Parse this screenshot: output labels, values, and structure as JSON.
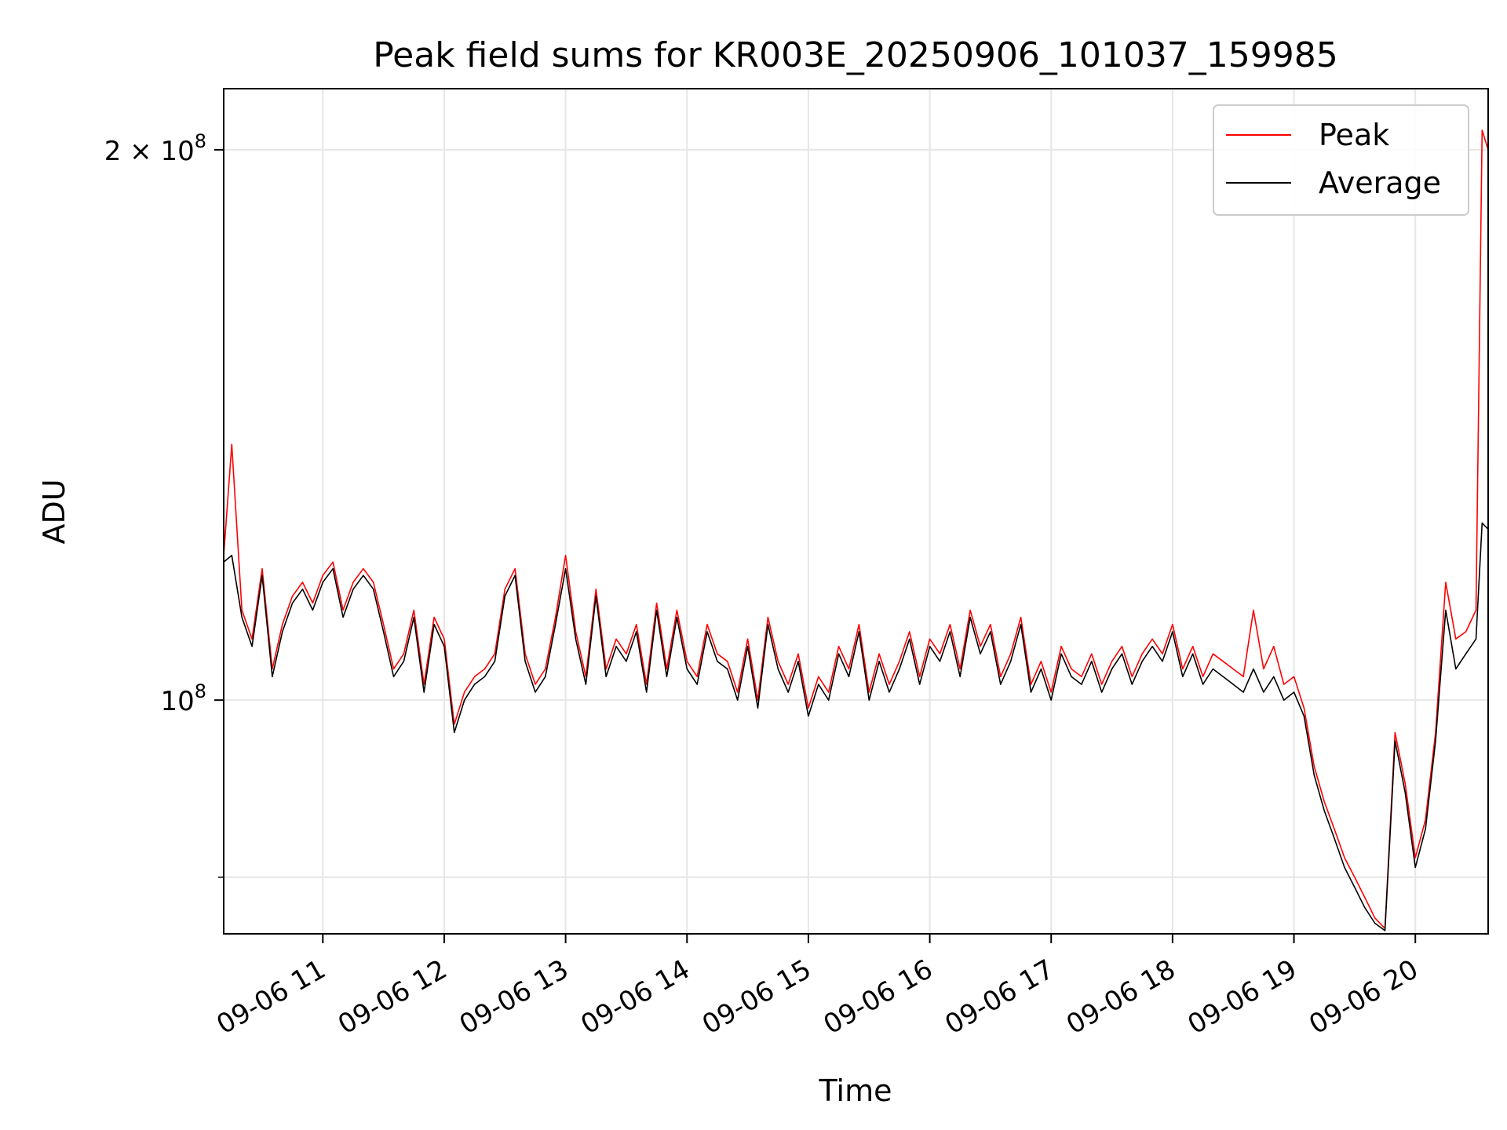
{
  "chart_data": {
    "type": "line",
    "title": "Peak field sums for KR003E_20250906_101037_159985",
    "xlabel": "Time",
    "ylabel": "ADU",
    "yscale": "log",
    "grid": true,
    "legend_position": "top-right",
    "x_range": [
      "09-06 10:11",
      "09-06 20:36"
    ],
    "ylim": [
      74500000,
      216000000
    ],
    "x_ticks": [
      "09-06 11",
      "09-06 12",
      "09-06 13",
      "09-06 14",
      "09-06 15",
      "09-06 16",
      "09-06 17",
      "09-06 18",
      "09-06 19",
      "09-06 20"
    ],
    "y_tick_labels": [
      {
        "value": 200000000,
        "mantissa": "2",
        "exponent": "8"
      },
      {
        "value": 100000000,
        "mantissa": "",
        "exponent": "8"
      }
    ],
    "y_minor_ticks": [
      80000000
    ],
    "series": [
      {
        "name": "Peak",
        "color": "#ff0000",
        "x": [
          "09-06 10:11",
          "09-06 10:15",
          "09-06 10:20",
          "09-06 10:25",
          "09-06 10:30",
          "09-06 10:35",
          "09-06 10:40",
          "09-06 10:45",
          "09-06 10:50",
          "09-06 10:55",
          "09-06 11:00",
          "09-06 11:05",
          "09-06 11:10",
          "09-06 11:15",
          "09-06 11:20",
          "09-06 11:25",
          "09-06 11:30",
          "09-06 11:35",
          "09-06 11:40",
          "09-06 11:45",
          "09-06 11:50",
          "09-06 11:55",
          "09-06 12:00",
          "09-06 12:05",
          "09-06 12:10",
          "09-06 12:15",
          "09-06 12:20",
          "09-06 12:25",
          "09-06 12:30",
          "09-06 12:35",
          "09-06 12:40",
          "09-06 12:45",
          "09-06 12:50",
          "09-06 12:55",
          "09-06 13:00",
          "09-06 13:05",
          "09-06 13:10",
          "09-06 13:15",
          "09-06 13:20",
          "09-06 13:25",
          "09-06 13:30",
          "09-06 13:35",
          "09-06 13:40",
          "09-06 13:45",
          "09-06 13:50",
          "09-06 13:55",
          "09-06 14:00",
          "09-06 14:05",
          "09-06 14:10",
          "09-06 14:15",
          "09-06 14:20",
          "09-06 14:25",
          "09-06 14:30",
          "09-06 14:35",
          "09-06 14:40",
          "09-06 14:45",
          "09-06 14:50",
          "09-06 14:55",
          "09-06 15:00",
          "09-06 15:05",
          "09-06 15:10",
          "09-06 15:15",
          "09-06 15:20",
          "09-06 15:25",
          "09-06 15:30",
          "09-06 15:35",
          "09-06 15:40",
          "09-06 15:45",
          "09-06 15:50",
          "09-06 15:55",
          "09-06 16:00",
          "09-06 16:05",
          "09-06 16:10",
          "09-06 16:15",
          "09-06 16:20",
          "09-06 16:25",
          "09-06 16:30",
          "09-06 16:35",
          "09-06 16:40",
          "09-06 16:45",
          "09-06 16:50",
          "09-06 16:55",
          "09-06 17:00",
          "09-06 17:05",
          "09-06 17:10",
          "09-06 17:15",
          "09-06 17:20",
          "09-06 17:25",
          "09-06 17:30",
          "09-06 17:35",
          "09-06 17:40",
          "09-06 17:45",
          "09-06 17:50",
          "09-06 17:55",
          "09-06 18:00",
          "09-06 18:05",
          "09-06 18:10",
          "09-06 18:15",
          "09-06 18:20",
          "09-06 18:25",
          "09-06 18:30",
          "09-06 18:35",
          "09-06 18:40",
          "09-06 18:45",
          "09-06 18:50",
          "09-06 18:55",
          "09-06 19:00",
          "09-06 19:05",
          "09-06 19:10",
          "09-06 19:15",
          "09-06 19:20",
          "09-06 19:25",
          "09-06 19:30",
          "09-06 19:35",
          "09-06 19:40",
          "09-06 19:45",
          "09-06 19:50",
          "09-06 19:55",
          "09-06 20:00",
          "09-06 20:05",
          "09-06 20:10",
          "09-06 20:15",
          "09-06 20:20",
          "09-06 20:25",
          "09-06 20:30",
          "09-06 20:33",
          "09-06 20:36"
        ],
        "y": [
          120000000,
          138000000,
          112000000,
          108000000,
          118000000,
          104000000,
          110000000,
          114000000,
          116000000,
          113000000,
          117000000,
          119000000,
          112000000,
          116000000,
          118000000,
          116000000,
          110000000,
          104000000,
          106000000,
          112000000,
          102000000,
          111000000,
          108000000,
          97000000,
          101000000,
          103000000,
          104000000,
          106000000,
          115000000,
          118000000,
          106000000,
          102000000,
          104000000,
          111000000,
          120000000,
          109000000,
          103000000,
          115000000,
          104000000,
          108000000,
          106000000,
          110000000,
          102000000,
          113000000,
          104000000,
          112000000,
          105000000,
          103000000,
          110000000,
          106000000,
          105000000,
          101000000,
          108000000,
          100000000,
          111000000,
          105000000,
          102000000,
          106000000,
          99000000,
          103000000,
          101000000,
          107000000,
          104000000,
          110000000,
          101000000,
          106000000,
          102000000,
          105000000,
          109000000,
          103000000,
          108000000,
          106000000,
          110000000,
          104000000,
          112000000,
          107000000,
          110000000,
          103000000,
          106000000,
          111000000,
          102000000,
          105000000,
          101000000,
          107000000,
          104000000,
          103000000,
          106000000,
          102000000,
          105000000,
          107000000,
          103000000,
          106000000,
          108000000,
          106000000,
          110000000,
          104000000,
          107000000,
          103000000,
          106000000,
          105000000,
          104000000,
          103000000,
          112000000,
          104000000,
          107000000,
          102000000,
          103000000,
          99000000,
          92000000,
          88000000,
          85000000,
          82000000,
          80000000,
          78000000,
          76000000,
          75000000,
          96000000,
          90000000,
          82000000,
          86000000,
          96000000,
          116000000,
          108000000,
          109000000,
          112000000,
          205000000,
          200000000
        ]
      },
      {
        "name": "Average",
        "color": "#000000",
        "x": [
          "09-06 10:11",
          "09-06 10:15",
          "09-06 10:20",
          "09-06 10:25",
          "09-06 10:30",
          "09-06 10:35",
          "09-06 10:40",
          "09-06 10:45",
          "09-06 10:50",
          "09-06 10:55",
          "09-06 11:00",
          "09-06 11:05",
          "09-06 11:10",
          "09-06 11:15",
          "09-06 11:20",
          "09-06 11:25",
          "09-06 11:30",
          "09-06 11:35",
          "09-06 11:40",
          "09-06 11:45",
          "09-06 11:50",
          "09-06 11:55",
          "09-06 12:00",
          "09-06 12:05",
          "09-06 12:10",
          "09-06 12:15",
          "09-06 12:20",
          "09-06 12:25",
          "09-06 12:30",
          "09-06 12:35",
          "09-06 12:40",
          "09-06 12:45",
          "09-06 12:50",
          "09-06 12:55",
          "09-06 13:00",
          "09-06 13:05",
          "09-06 13:10",
          "09-06 13:15",
          "09-06 13:20",
          "09-06 13:25",
          "09-06 13:30",
          "09-06 13:35",
          "09-06 13:40",
          "09-06 13:45",
          "09-06 13:50",
          "09-06 13:55",
          "09-06 14:00",
          "09-06 14:05",
          "09-06 14:10",
          "09-06 14:15",
          "09-06 14:20",
          "09-06 14:25",
          "09-06 14:30",
          "09-06 14:35",
          "09-06 14:40",
          "09-06 14:45",
          "09-06 14:50",
          "09-06 14:55",
          "09-06 15:00",
          "09-06 15:05",
          "09-06 15:10",
          "09-06 15:15",
          "09-06 15:20",
          "09-06 15:25",
          "09-06 15:30",
          "09-06 15:35",
          "09-06 15:40",
          "09-06 15:45",
          "09-06 15:50",
          "09-06 15:55",
          "09-06 16:00",
          "09-06 16:05",
          "09-06 16:10",
          "09-06 16:15",
          "09-06 16:20",
          "09-06 16:25",
          "09-06 16:30",
          "09-06 16:35",
          "09-06 16:40",
          "09-06 16:45",
          "09-06 16:50",
          "09-06 16:55",
          "09-06 17:00",
          "09-06 17:05",
          "09-06 17:10",
          "09-06 17:15",
          "09-06 17:20",
          "09-06 17:25",
          "09-06 17:30",
          "09-06 17:35",
          "09-06 17:40",
          "09-06 17:45",
          "09-06 17:50",
          "09-06 17:55",
          "09-06 18:00",
          "09-06 18:05",
          "09-06 18:10",
          "09-06 18:15",
          "09-06 18:20",
          "09-06 18:25",
          "09-06 18:30",
          "09-06 18:35",
          "09-06 18:40",
          "09-06 18:45",
          "09-06 18:50",
          "09-06 18:55",
          "09-06 19:00",
          "09-06 19:05",
          "09-06 19:10",
          "09-06 19:15",
          "09-06 19:20",
          "09-06 19:25",
          "09-06 19:30",
          "09-06 19:35",
          "09-06 19:40",
          "09-06 19:45",
          "09-06 19:50",
          "09-06 19:55",
          "09-06 20:00",
          "09-06 20:05",
          "09-06 20:10",
          "09-06 20:15",
          "09-06 20:20",
          "09-06 20:25",
          "09-06 20:30",
          "09-06 20:33",
          "09-06 20:36"
        ],
        "y": [
          119000000,
          120000000,
          111000000,
          107000000,
          117000000,
          103000000,
          109000000,
          113000000,
          115000000,
          112000000,
          116000000,
          118000000,
          111000000,
          115000000,
          117000000,
          115000000,
          109000000,
          103000000,
          105000000,
          111000000,
          101000000,
          110000000,
          107000000,
          96000000,
          100000000,
          102000000,
          103000000,
          105000000,
          114000000,
          117000000,
          105000000,
          101000000,
          103000000,
          110000000,
          118000000,
          108000000,
          102000000,
          114000000,
          103000000,
          107000000,
          105000000,
          109000000,
          101000000,
          112000000,
          103000000,
          111000000,
          104000000,
          102000000,
          109000000,
          105000000,
          104000000,
          100000000,
          107000000,
          99000000,
          110000000,
          104000000,
          101000000,
          105000000,
          98000000,
          102000000,
          100000000,
          106000000,
          103000000,
          109000000,
          100000000,
          105000000,
          101000000,
          104000000,
          108000000,
          102000000,
          107000000,
          105000000,
          109000000,
          103000000,
          111000000,
          106000000,
          109000000,
          102000000,
          105000000,
          110000000,
          101000000,
          104000000,
          100000000,
          106000000,
          103000000,
          102000000,
          105000000,
          101000000,
          104000000,
          106000000,
          102000000,
          105000000,
          107000000,
          105000000,
          109000000,
          103000000,
          106000000,
          102000000,
          104000000,
          103000000,
          102000000,
          101000000,
          104000000,
          101000000,
          103000000,
          100000000,
          101000000,
          98000000,
          91000000,
          87000000,
          84000000,
          81000000,
          79000000,
          77000000,
          75500000,
          74800000,
          95000000,
          89000000,
          81000000,
          85000000,
          95000000,
          112000000,
          104000000,
          106000000,
          108000000,
          125000000,
          124000000
        ]
      }
    ]
  }
}
